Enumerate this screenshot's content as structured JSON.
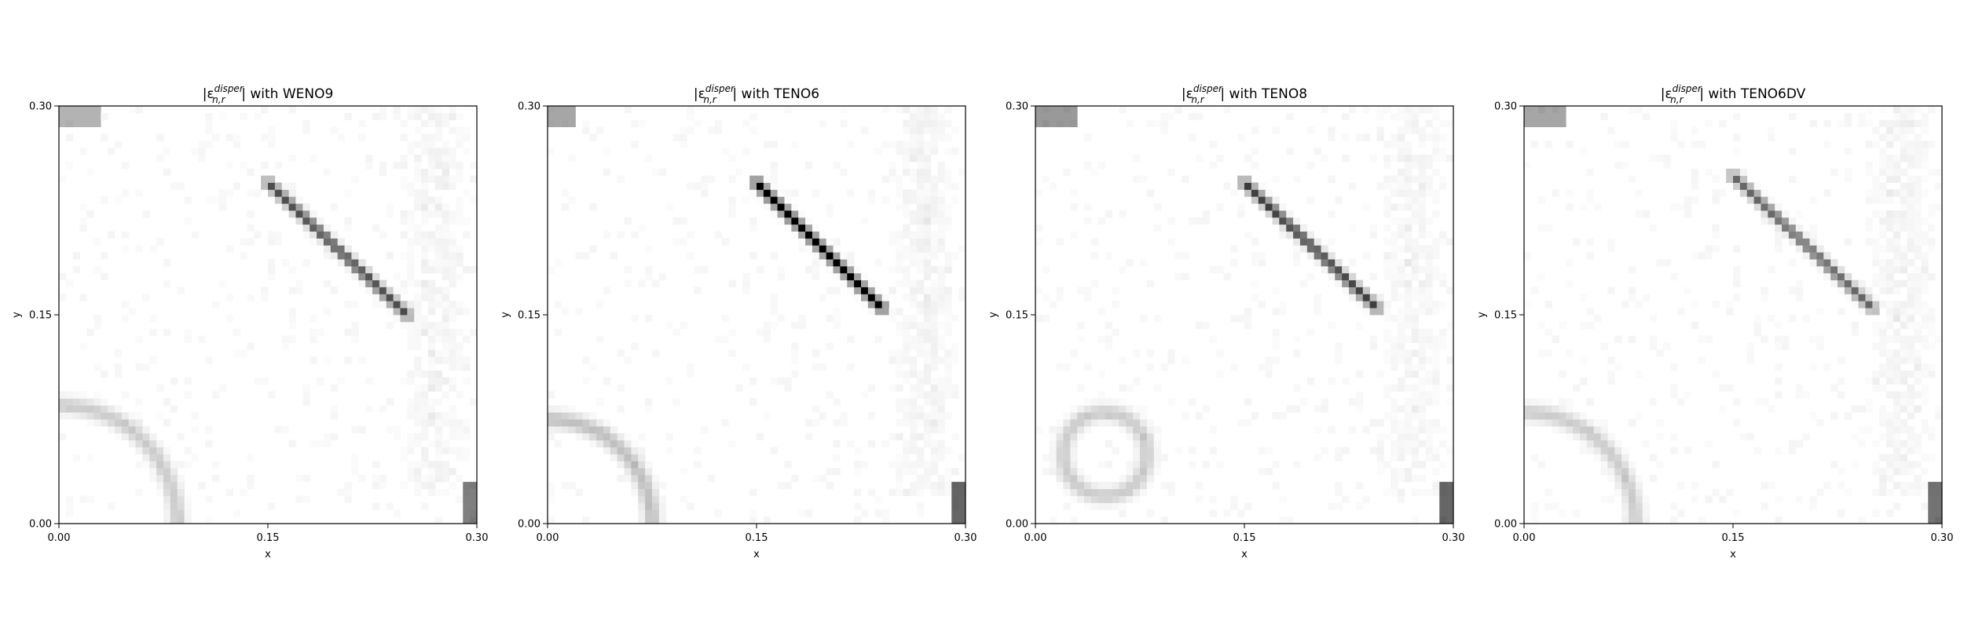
{
  "figure": {
    "panels": [
      {
        "name_prefix": "|ε",
        "sup": "disper",
        "sub": "n,r",
        "name_suffix": "| with WENO9"
      },
      {
        "name_prefix": "|ε",
        "sup": "disper",
        "sub": "n,r",
        "name_suffix": "| with TENO6"
      },
      {
        "name_prefix": "|ε",
        "sup": "disper",
        "sub": "n,r",
        "name_suffix": "| with TENO8"
      },
      {
        "name_prefix": "|ε",
        "sup": "disper",
        "sub": "n,r",
        "name_suffix": "| with TENO6DV"
      }
    ]
  },
  "chart_data": [
    {
      "type": "heatmap",
      "title": "|ε_{n,r}^{disper}| with WENO9",
      "xlabel": "x",
      "ylabel": "y",
      "xlim": [
        0.0,
        0.3
      ],
      "ylim": [
        0.0,
        0.3
      ],
      "xticks": [
        "0.00",
        "0.15",
        "0.30"
      ],
      "yticks": [
        "0.00",
        "0.15",
        "0.30"
      ],
      "colormap": "gray_r",
      "grid": false,
      "features": {
        "diagonal_band": {
          "from": [
            0.15,
            0.245
          ],
          "to": [
            0.25,
            0.15
          ],
          "peak": 0.7
        },
        "lower_left_arc": {
          "center": [
            0.0,
            0.0
          ],
          "radius": 0.085,
          "intensity": 0.2
        },
        "top_left_patch": {
          "x": [
            0.0,
            0.03
          ],
          "y": [
            0.285,
            0.3
          ],
          "intensity": 0.3
        },
        "bottom_right_patch": {
          "x": [
            0.29,
            0.3
          ],
          "y": [
            0.0,
            0.03
          ],
          "intensity": 0.5
        }
      }
    },
    {
      "type": "heatmap",
      "title": "|ε_{n,r}^{disper}| with TENO6",
      "xlabel": "x",
      "ylabel": "y",
      "xlim": [
        0.0,
        0.3
      ],
      "ylim": [
        0.0,
        0.3
      ],
      "xticks": [
        "0.00",
        "0.15",
        "0.30"
      ],
      "yticks": [
        "0.00",
        "0.15",
        "0.30"
      ],
      "colormap": "gray_r",
      "grid": false,
      "features": {
        "diagonal_band": {
          "from": [
            0.15,
            0.245
          ],
          "to": [
            0.24,
            0.155
          ],
          "peak": 1.0
        },
        "lower_left_arc": {
          "center": [
            0.0,
            0.0
          ],
          "radius": 0.075,
          "intensity": 0.25
        },
        "top_left_patch": {
          "x": [
            0.0,
            0.02
          ],
          "y": [
            0.285,
            0.3
          ],
          "intensity": 0.35
        },
        "bottom_right_patch": {
          "x": [
            0.29,
            0.3
          ],
          "y": [
            0.0,
            0.03
          ],
          "intensity": 0.6
        }
      }
    },
    {
      "type": "heatmap",
      "title": "|ε_{n,r}^{disper}| with TENO8",
      "xlabel": "x",
      "ylabel": "y",
      "xlim": [
        0.0,
        0.3
      ],
      "ylim": [
        0.0,
        0.3
      ],
      "xticks": [
        "0.00",
        "0.15",
        "0.30"
      ],
      "yticks": [
        "0.00",
        "0.15",
        "0.30"
      ],
      "colormap": "gray_r",
      "grid": false,
      "features": {
        "diagonal_band": {
          "from": [
            0.15,
            0.245
          ],
          "to": [
            0.245,
            0.155
          ],
          "peak": 0.75
        },
        "lower_left_arc": {
          "center": [
            0.05,
            0.05
          ],
          "radius": 0.03,
          "intensity": 0.2
        },
        "top_left_patch": {
          "x": [
            0.0,
            0.03
          ],
          "y": [
            0.285,
            0.3
          ],
          "intensity": 0.4
        },
        "bottom_right_patch": {
          "x": [
            0.29,
            0.3
          ],
          "y": [
            0.0,
            0.03
          ],
          "intensity": 0.6
        }
      }
    },
    {
      "type": "heatmap",
      "title": "|ε_{n,r}^{disper}| with TENO6DV",
      "xlabel": "x",
      "ylabel": "y",
      "xlim": [
        0.0,
        0.3
      ],
      "ylim": [
        0.0,
        0.3
      ],
      "xticks": [
        "0.00",
        "0.15",
        "0.30"
      ],
      "yticks": [
        "0.00",
        "0.15",
        "0.30"
      ],
      "colormap": "gray_r",
      "grid": false,
      "features": {
        "diagonal_band": {
          "from": [
            0.15,
            0.25
          ],
          "to": [
            0.25,
            0.155
          ],
          "peak": 0.6
        },
        "lower_left_arc": {
          "center": [
            0.0,
            0.0
          ],
          "radius": 0.08,
          "intensity": 0.2
        },
        "top_left_patch": {
          "x": [
            0.0,
            0.03
          ],
          "y": [
            0.285,
            0.3
          ],
          "intensity": 0.35
        },
        "bottom_right_patch": {
          "x": [
            0.29,
            0.3
          ],
          "y": [
            0.0,
            0.03
          ],
          "intensity": 0.55
        }
      }
    }
  ]
}
